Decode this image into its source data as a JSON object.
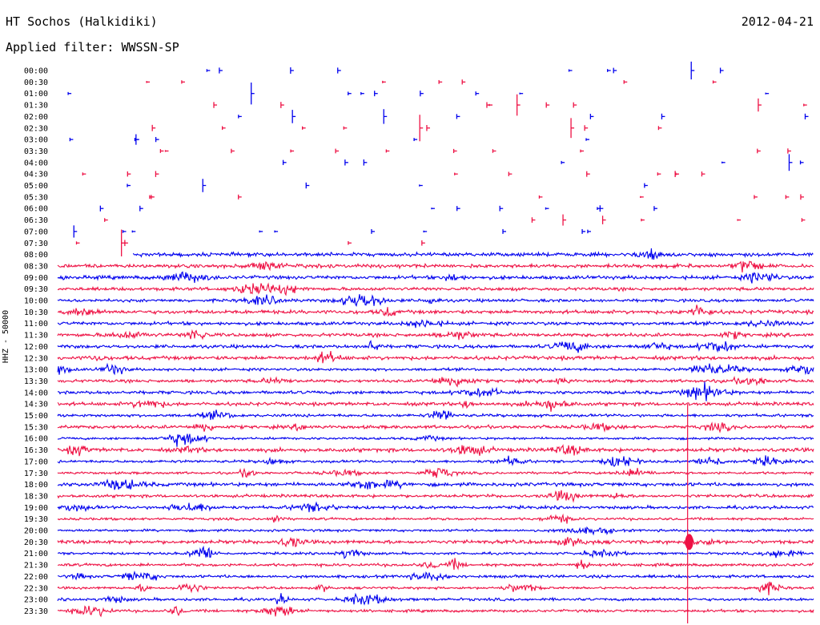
{
  "header": {
    "station": "HT Sochos (Halkidiki)",
    "date": "2012-04-21",
    "filter": "Applied filter: WWSSN-SP"
  },
  "chart_data": {
    "type": "helicorder",
    "channel_label": "HHZ - 50000",
    "colors": {
      "even": "#0000ee",
      "odd": "#ee1144"
    },
    "rows": [
      "00:00",
      "00:30",
      "01:00",
      "01:30",
      "02:00",
      "02:30",
      "03:00",
      "03:30",
      "04:00",
      "04:30",
      "05:00",
      "05:30",
      "06:00",
      "06:30",
      "07:00",
      "07:30",
      "08:00",
      "08:30",
      "09:00",
      "09:30",
      "10:00",
      "10:30",
      "11:00",
      "11:30",
      "12:00",
      "12:30",
      "13:00",
      "13:30",
      "14:00",
      "14:30",
      "15:00",
      "15:30",
      "16:00",
      "16:30",
      "17:00",
      "17:30",
      "18:00",
      "18:30",
      "19:00",
      "19:30",
      "20:00",
      "20:30",
      "21:00",
      "21:30",
      "22:00",
      "22:30",
      "23:00",
      "23:30"
    ],
    "continuous_from_row": 16,
    "trace_start_minute_row16": 3,
    "event_time_minute": 25
  }
}
